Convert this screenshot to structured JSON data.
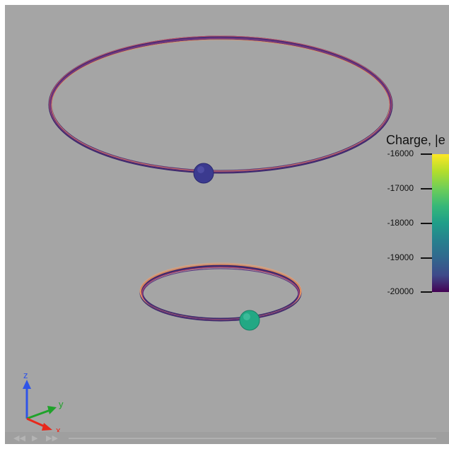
{
  "colorbar": {
    "title": "Charge, |e",
    "ticks": [
      "-16000",
      "-17000",
      "-18000",
      "-19000",
      "-20000"
    ],
    "range": [
      -20000,
      -16000
    ],
    "colormap": "viridis"
  },
  "orientation_axes": {
    "z_label": "z",
    "y_label": "y",
    "x_label": "x",
    "z_color": "#2f54e8",
    "y_color": "#1fa22a",
    "x_color": "#e8291c"
  },
  "particles": [
    {
      "name": "upper-ring-particle",
      "color": "#3b3a8f"
    },
    {
      "name": "lower-ring-particle",
      "color": "#22a884"
    }
  ],
  "playback": {
    "prev_icon": "skip-back-icon",
    "play_icon": "play-icon",
    "next_icon": "skip-forward-icon"
  }
}
